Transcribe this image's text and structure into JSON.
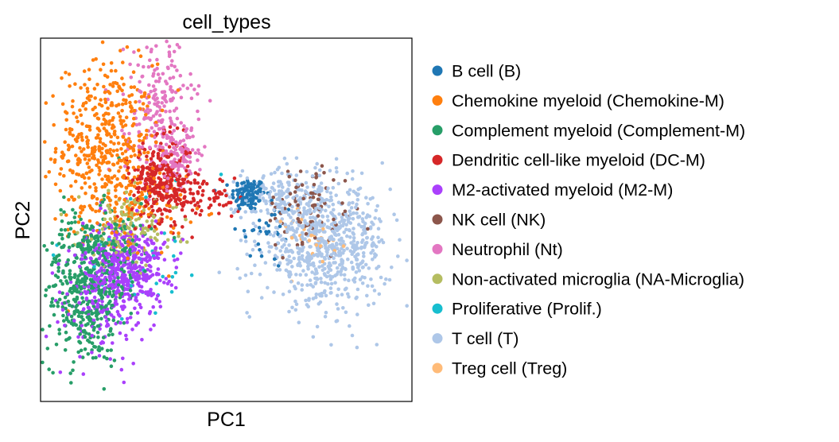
{
  "chart_data": {
    "type": "scatter",
    "title": "cell_types",
    "xlabel": "PC1",
    "ylabel": "PC2",
    "xlim": [
      -10,
      10
    ],
    "ylim": [
      -10,
      10
    ],
    "grid": false,
    "ticks_shown": false,
    "legend_position": "right",
    "series": [
      {
        "name": "B cell (B)",
        "color": "#1f77b4",
        "clusters": [
          {
            "cx": 1.2,
            "cy": 1.4,
            "sx": 0.45,
            "sy": 0.45,
            "n": 120
          },
          {
            "cx": 2.2,
            "cy": -0.8,
            "sx": 0.8,
            "sy": 1.0,
            "n": 30
          }
        ]
      },
      {
        "name": "Chemokine myeloid (Chemokine-M)",
        "color": "#ff7f0e",
        "clusters": [
          {
            "cx": -6.5,
            "cy": 4.2,
            "sx": 1.3,
            "sy": 2.2,
            "n": 430
          },
          {
            "cx": -5.0,
            "cy": 0.5,
            "sx": 1.4,
            "sy": 1.2,
            "n": 120
          }
        ]
      },
      {
        "name": "Complement myeloid (Complement-M)",
        "color": "#279e68",
        "clusters": [
          {
            "cx": -7.6,
            "cy": -3.8,
            "sx": 1.1,
            "sy": 2.1,
            "n": 450
          },
          {
            "cx": -6.0,
            "cy": -1.5,
            "sx": 1.0,
            "sy": 1.2,
            "n": 100
          }
        ]
      },
      {
        "name": "Dendritic cell-like myeloid (DC-M)",
        "color": "#d62728",
        "clusters": [
          {
            "cx": -3.5,
            "cy": 2.2,
            "sx": 0.8,
            "sy": 1.1,
            "n": 320
          },
          {
            "cx": -1.2,
            "cy": 1.2,
            "sx": 1.0,
            "sy": 0.6,
            "n": 70
          }
        ]
      },
      {
        "name": "M2-activated myeloid  (M2-M)",
        "color": "#aa40fc",
        "clusters": [
          {
            "cx": -5.5,
            "cy": -2.6,
            "sx": 1.1,
            "sy": 1.3,
            "n": 450
          },
          {
            "cx": -7.0,
            "cy": -4.8,
            "sx": 1.3,
            "sy": 1.6,
            "n": 100
          }
        ]
      },
      {
        "name": "NK cell (NK)",
        "color": "#8c564b",
        "clusters": [
          {
            "cx": 4.5,
            "cy": 0.6,
            "sx": 1.2,
            "sy": 1.3,
            "n": 90
          }
        ]
      },
      {
        "name": "Neutrophil (Nt)",
        "color": "#e377c2",
        "clusters": [
          {
            "cx": -3.6,
            "cy": 6.2,
            "sx": 0.9,
            "sy": 2.0,
            "n": 210
          },
          {
            "cx": -2.5,
            "cy": 3.5,
            "sx": 0.6,
            "sy": 0.7,
            "n": 90
          }
        ]
      },
      {
        "name": "Non-activated microglia (NA-Microglia)",
        "color": "#b5bd61",
        "clusters": [
          {
            "cx": -5.3,
            "cy": -0.5,
            "sx": 1.3,
            "sy": 1.0,
            "n": 130
          }
        ]
      },
      {
        "name": "Proliferative (Prolif.)",
        "color": "#17becf",
        "clusters": [
          {
            "cx": -4.5,
            "cy": -2.0,
            "sx": 2.2,
            "sy": 2.0,
            "n": 40
          }
        ]
      },
      {
        "name": "T cell (T)",
        "color": "#aec7e8",
        "clusters": [
          {
            "cx": 5.3,
            "cy": -1.4,
            "sx": 1.7,
            "sy": 1.6,
            "n": 700
          },
          {
            "cx": 3.2,
            "cy": 1.2,
            "sx": 1.3,
            "sy": 0.9,
            "n": 150
          }
        ]
      },
      {
        "name": "Treg cell (Treg)",
        "color": "#ffbb78",
        "clusters": [
          {
            "cx": 4.8,
            "cy": -0.9,
            "sx": 0.9,
            "sy": 0.9,
            "n": 25
          }
        ]
      }
    ]
  }
}
